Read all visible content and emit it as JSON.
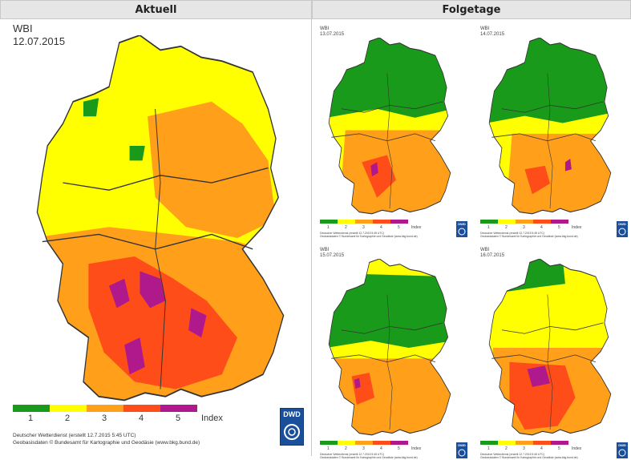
{
  "headers": {
    "current": "Aktuell",
    "forecast": "Folgetage"
  },
  "main": {
    "index_name": "WBI",
    "date": "12.07.2015",
    "legend_unit": "Index",
    "legend_levels": [
      "1",
      "2",
      "3",
      "4",
      "5"
    ],
    "footer_line1": "Deutscher Wetterdienst (erstellt 12.7.2015 5:45 UTC)",
    "footer_line2": "Geobasisdaten © Bundesamt für Kartographie und Geodäsie (www.bkg.bund.de)",
    "logo_text": "DWD"
  },
  "colors": {
    "level1": "#1a9a1a",
    "level2": "#ffff00",
    "level3": "#ff9f1a",
    "level4": "#ff4d1a",
    "level5": "#b0198c",
    "border": "#333333"
  },
  "forecasts": [
    {
      "index_name": "WBI",
      "date": "13.07.2015",
      "legend_unit": "Index",
      "legend_levels": [
        "1",
        "2",
        "3",
        "4",
        "5"
      ],
      "footer_line1": "Deutscher Wetterdienst (erstellt 12.7.2015 5:45 UTC)",
      "footer_line2": "Geobasisdaten © Bundesamt für Kartographie und Geodäsie (www.bkg.bund.de)",
      "logo_text": "DWD"
    },
    {
      "index_name": "WBI",
      "date": "14.07.2015",
      "legend_unit": "Index",
      "legend_levels": [
        "1",
        "2",
        "3",
        "4",
        "5"
      ],
      "footer_line1": "Deutscher Wetterdienst (erstellt 12.7.2015 5:45 UTC)",
      "footer_line2": "Geobasisdaten © Bundesamt für Kartographie und Geodäsie (www.bkg.bund.de)",
      "logo_text": "DWD"
    },
    {
      "index_name": "WBI",
      "date": "15.07.2015",
      "legend_unit": "Index",
      "legend_levels": [
        "1",
        "2",
        "3",
        "4",
        "5"
      ],
      "footer_line1": "Deutscher Wetterdienst (erstellt 12.7.2015 5:45 UTC)",
      "footer_line2": "Geobasisdaten © Bundesamt für Kartographie und Geodäsie (www.bkg.bund.de)",
      "logo_text": "DWD"
    },
    {
      "index_name": "WBI",
      "date": "16.07.2015",
      "legend_unit": "Index",
      "legend_levels": [
        "1",
        "2",
        "3",
        "4",
        "5"
      ],
      "footer_line1": "Deutscher Wetterdienst (erstellt 12.7.2015 5:45 UTC)",
      "footer_line2": "Geobasisdaten © Bundesamt für Kartographie und Geodäsie (www.bkg.bund.de)",
      "logo_text": "DWD"
    }
  ]
}
